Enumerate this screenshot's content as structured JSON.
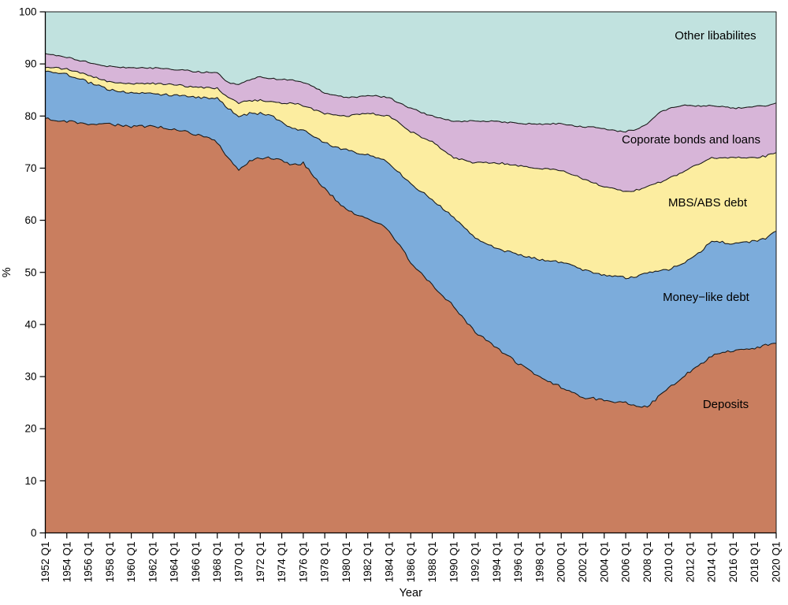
{
  "figure": {
    "xlabel": "Year",
    "ylabel": "%"
  },
  "chart_data": {
    "type": "area",
    "stacked": true,
    "title": "",
    "xlabel": "Year",
    "ylabel": "%",
    "ylim": [
      0,
      100
    ],
    "grid": false,
    "legend_position": "in-plot annotations",
    "x_unit": "quarterly data, first quarter labels shown every 2 years",
    "x": [
      1952,
      1953,
      1954,
      1955,
      1956,
      1957,
      1958,
      1959,
      1960,
      1961,
      1962,
      1963,
      1964,
      1965,
      1966,
      1967,
      1968,
      1969,
      1970,
      1971,
      1972,
      1973,
      1974,
      1975,
      1976,
      1977,
      1978,
      1979,
      1980,
      1981,
      1982,
      1983,
      1984,
      1985,
      1986,
      1987,
      1988,
      1989,
      1990,
      1991,
      1992,
      1993,
      1994,
      1995,
      1996,
      1997,
      1998,
      1999,
      2000,
      2001,
      2002,
      2003,
      2004,
      2005,
      2006,
      2007,
      2008,
      2009,
      2010,
      2011,
      2012,
      2013,
      2014,
      2015,
      2016,
      2017,
      2018,
      2019,
      2020
    ],
    "x_tick_labels": [
      "1952 Q1",
      "1954 Q1",
      "1956 Q1",
      "1958 Q1",
      "1960 Q1",
      "1962 Q1",
      "1964 Q1",
      "1966 Q1",
      "1968 Q1",
      "1970 Q1",
      "1972 Q1",
      "1974 Q1",
      "1976 Q1",
      "1978 Q1",
      "1980 Q1",
      "1982 Q1",
      "1984 Q1",
      "1986 Q1",
      "1988 Q1",
      "1990 Q1",
      "1992 Q1",
      "1994 Q1",
      "1996 Q1",
      "1998 Q1",
      "2000 Q1",
      "2002 Q1",
      "2004 Q1",
      "2006 Q1",
      "2008 Q1",
      "2010 Q1",
      "2012 Q1",
      "2014 Q1",
      "2016 Q1",
      "2018 Q1",
      "2020 Q1"
    ],
    "y_tick_labels": [
      "0",
      "10",
      "20",
      "30",
      "40",
      "50",
      "60",
      "70",
      "80",
      "90",
      "100"
    ],
    "outline_color": "#1a1a1a",
    "series": [
      {
        "name": "deposits",
        "label": "Deposits",
        "color": "#c97e5f",
        "values": [
          79.5,
          79.3,
          79.0,
          78.8,
          78.5,
          78.5,
          78.5,
          78.2,
          78.0,
          78.0,
          78.0,
          77.8,
          77.5,
          77.0,
          76.5,
          76.0,
          75.0,
          72.0,
          69.5,
          71.5,
          72.0,
          72.0,
          71.5,
          70.5,
          71.0,
          68.5,
          66.0,
          64.0,
          62.0,
          61.0,
          60.5,
          59.5,
          58.0,
          55.0,
          52.0,
          49.7,
          47.5,
          45.5,
          43.5,
          41.0,
          38.5,
          37.0,
          35.5,
          34.0,
          32.5,
          31.2,
          30.0,
          29.0,
          28.0,
          27.0,
          26.0,
          25.8,
          25.5,
          25.2,
          25.0,
          24.3,
          24.2,
          26.0,
          27.8,
          29.5,
          31.0,
          32.5,
          34.0,
          34.5,
          35.0,
          35.2,
          35.5,
          36.0,
          36.5
        ]
      },
      {
        "name": "money-like-debt",
        "label": "Money−like debt",
        "color": "#7cacdb",
        "values": [
          9.0,
          9.0,
          9.0,
          8.5,
          8.0,
          7.3,
          6.5,
          6.6,
          6.5,
          6.4,
          6.3,
          6.3,
          6.5,
          6.8,
          7.0,
          7.5,
          8.5,
          9.5,
          10.5,
          9.0,
          8.5,
          8.0,
          7.5,
          7.0,
          6.5,
          7.5,
          9.0,
          10.0,
          11.5,
          12.0,
          12.0,
          12.5,
          13.0,
          14.0,
          15.0,
          15.8,
          16.5,
          16.7,
          17.0,
          17.5,
          18.0,
          18.5,
          19.0,
          20.0,
          21.0,
          21.8,
          22.5,
          23.2,
          24.0,
          24.2,
          24.5,
          24.2,
          24.0,
          24.0,
          24.0,
          24.9,
          25.8,
          24.2,
          22.7,
          22.0,
          21.5,
          21.5,
          22.0,
          21.3,
          20.5,
          20.6,
          20.5,
          20.5,
          21.5
        ]
      },
      {
        "name": "mbs-abs-debt",
        "label": "MBS/ABS debt",
        "color": "#fceda0",
        "values": [
          0.8,
          0.9,
          1.0,
          1.1,
          1.3,
          1.4,
          1.5,
          1.6,
          1.8,
          1.8,
          1.9,
          2.0,
          2.0,
          2.0,
          2.0,
          1.9,
          1.8,
          2.0,
          2.5,
          2.5,
          2.5,
          2.8,
          3.5,
          5.0,
          4.5,
          5.2,
          5.5,
          6.2,
          6.5,
          7.2,
          8.0,
          8.3,
          9.0,
          9.5,
          10.0,
          10.5,
          11.0,
          11.3,
          11.5,
          13.0,
          14.5,
          15.5,
          16.5,
          16.8,
          17.0,
          17.2,
          17.5,
          17.6,
          17.5,
          17.6,
          17.5,
          17.2,
          17.0,
          16.8,
          16.5,
          16.6,
          16.5,
          17.0,
          17.5,
          17.5,
          17.5,
          17.0,
          16.0,
          16.2,
          16.5,
          16.2,
          16.0,
          15.8,
          15.0
        ]
      },
      {
        "name": "corporate-bonds-and-loans",
        "label": "Coporate bonds and loans",
        "color": "#d7b5d8",
        "values": [
          2.7,
          2.5,
          2.3,
          2.4,
          2.5,
          2.7,
          3.0,
          3.0,
          3.0,
          3.0,
          3.0,
          3.0,
          3.0,
          3.0,
          3.0,
          3.0,
          3.0,
          3.0,
          3.5,
          4.0,
          4.5,
          4.4,
          4.5,
          4.5,
          4.5,
          4.3,
          4.0,
          3.8,
          3.5,
          3.5,
          3.5,
          3.5,
          3.5,
          4.0,
          4.5,
          4.7,
          5.0,
          6.0,
          7.0,
          7.5,
          8.0,
          8.0,
          8.0,
          8.0,
          8.0,
          8.3,
          8.5,
          8.7,
          9.0,
          9.4,
          10.0,
          10.6,
          11.0,
          11.2,
          11.5,
          11.7,
          12.0,
          13.3,
          13.5,
          13.0,
          12.0,
          11.0,
          10.0,
          9.8,
          9.5,
          9.6,
          9.8,
          9.7,
          9.5
        ]
      },
      {
        "name": "other-liabilities",
        "label": "Other libabilites",
        "color": "#c1e2df",
        "values": [
          8.0,
          8.3,
          8.7,
          9.2,
          9.7,
          10.1,
          10.5,
          10.6,
          10.7,
          10.8,
          10.8,
          10.9,
          11.0,
          11.2,
          11.5,
          11.6,
          11.7,
          13.5,
          14.0,
          13.0,
          12.5,
          12.8,
          13.0,
          13.0,
          13.5,
          14.5,
          15.5,
          16.0,
          16.5,
          16.3,
          16.0,
          16.2,
          16.5,
          17.5,
          18.5,
          19.3,
          20.0,
          20.5,
          21.0,
          21.0,
          21.0,
          21.0,
          21.0,
          21.2,
          21.5,
          21.5,
          21.5,
          21.5,
          21.5,
          21.8,
          22.0,
          22.2,
          22.5,
          22.8,
          23.0,
          22.5,
          21.5,
          19.5,
          18.5,
          18.0,
          18.0,
          18.0,
          18.0,
          18.2,
          18.5,
          18.4,
          18.2,
          18.0,
          17.5
        ]
      }
    ]
  }
}
